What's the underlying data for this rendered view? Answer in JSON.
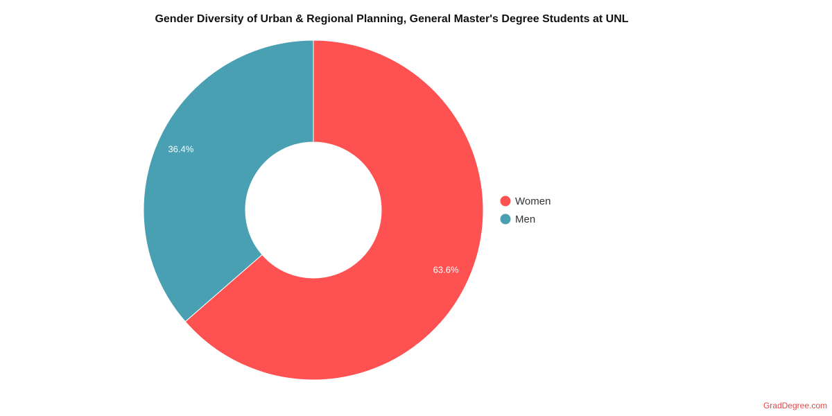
{
  "chart_data": {
    "type": "donut",
    "title": "Gender Diversity of Urban & Regional Planning, General Master's Degree Students at UNL",
    "categories": [
      "Women",
      "Men"
    ],
    "values": [
      63.6,
      36.4
    ],
    "value_labels": [
      "63.6%",
      "36.4%"
    ],
    "colors": [
      "#fe5152",
      "#4aa0b3"
    ],
    "legend": "right",
    "source": "GradDegree.com"
  }
}
